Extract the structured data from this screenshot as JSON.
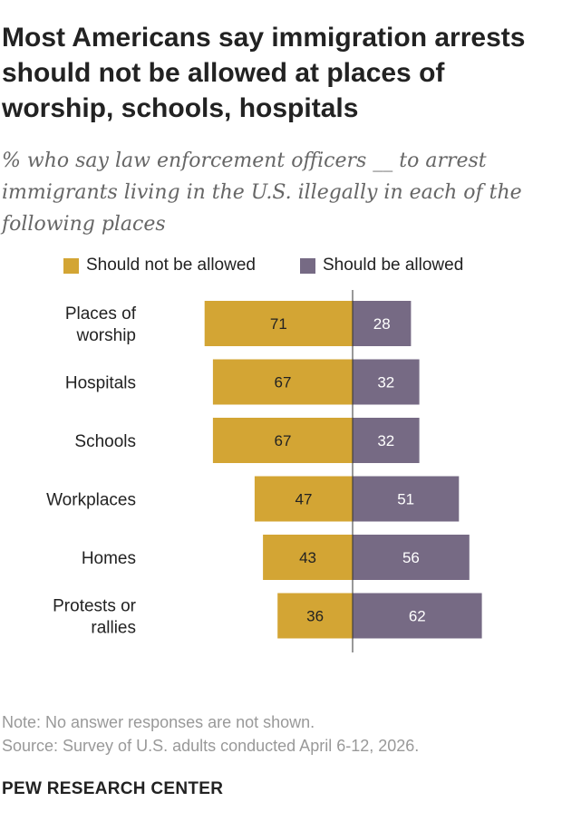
{
  "header": {
    "title": "Most Americans say immigration arrests should not be allowed at places of worship, schools, hospitals",
    "subtitle": "% who say law enforcement officers __ to arrest immigrants living in the U.S. illegally in each of the following places"
  },
  "colors": {
    "not_allowed": "#D3A534",
    "allowed": "#766A84",
    "axis": "#333333"
  },
  "chart_data": {
    "type": "bar",
    "orientation": "horizontal-diverging",
    "categories": [
      [
        "Places of",
        "worship"
      ],
      [
        "Hospitals"
      ],
      [
        "Schools"
      ],
      [
        "Workplaces"
      ],
      [
        "Homes"
      ],
      [
        "Protests or",
        "rallies"
      ]
    ],
    "series": [
      {
        "name": "Should not be allowed",
        "values": [
          71,
          67,
          67,
          47,
          43,
          36
        ]
      },
      {
        "name": "Should be allowed",
        "values": [
          28,
          32,
          32,
          51,
          56,
          62
        ]
      }
    ],
    "legend_position": "top",
    "grid": false
  },
  "footer": {
    "note": "Note: No answer responses are not shown.",
    "source": "Source: Survey of U.S. adults conducted April 6-12, 2026.",
    "brand": "PEW RESEARCH CENTER"
  }
}
